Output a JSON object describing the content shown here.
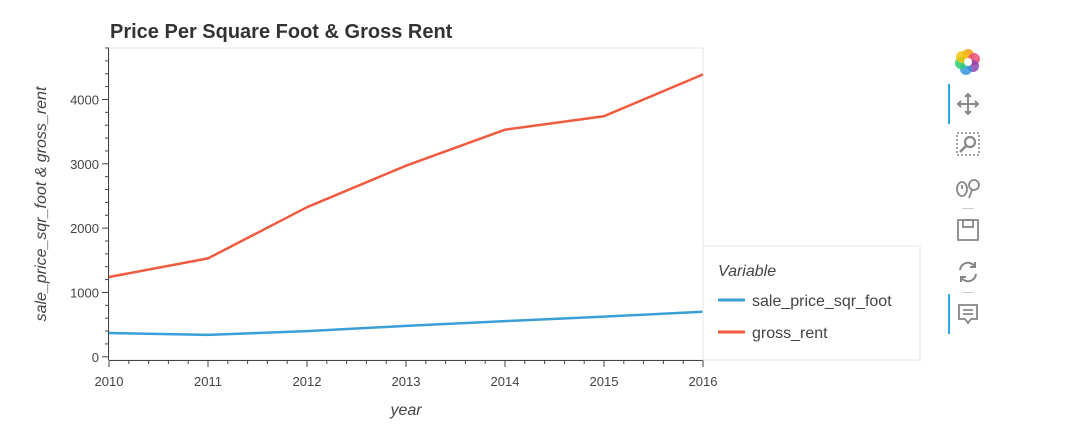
{
  "chart_data": {
    "type": "line",
    "title": "Price Per Square Foot & Gross Rent",
    "xlabel": "year",
    "ylabel": "sale_price_sqr_foot & gross_rent",
    "x": [
      2010,
      2011,
      2012,
      2013,
      2014,
      2015,
      2016
    ],
    "xlim": [
      2010,
      2016
    ],
    "ylim": [
      -50,
      4800
    ],
    "yticks": [
      0,
      1000,
      2000,
      3000,
      4000
    ],
    "xticks": [
      2010,
      2011,
      2012,
      2013,
      2014,
      2015,
      2016
    ],
    "grid": false,
    "legend": {
      "title": "Variable",
      "placement": "right",
      "entries": [
        "sale_price_sqr_foot",
        "gross_rent"
      ]
    },
    "series": [
      {
        "name": "sale_price_sqr_foot",
        "color": "#3a9fd6",
        "values": [
          370,
          340,
          400,
          480,
          555,
          625,
          700
        ]
      },
      {
        "name": "gross_rent",
        "color": "#f05b3f",
        "values": [
          1240,
          1530,
          2325,
          2970,
          3530,
          3740,
          4390
        ]
      }
    ]
  },
  "toolbar": {
    "tools": [
      {
        "name": "bokeh-logo-icon",
        "label": "Bokeh"
      },
      {
        "name": "pan-icon",
        "label": "Pan"
      },
      {
        "name": "box-zoom-icon",
        "label": "Box Zoom"
      },
      {
        "name": "wheel-zoom-icon",
        "label": "Wheel Zoom"
      },
      {
        "name": "save-icon",
        "label": "Save"
      },
      {
        "name": "reset-icon",
        "label": "Reset"
      },
      {
        "name": "hover-icon",
        "label": "Hover"
      }
    ],
    "active_color": "#26aae1"
  }
}
